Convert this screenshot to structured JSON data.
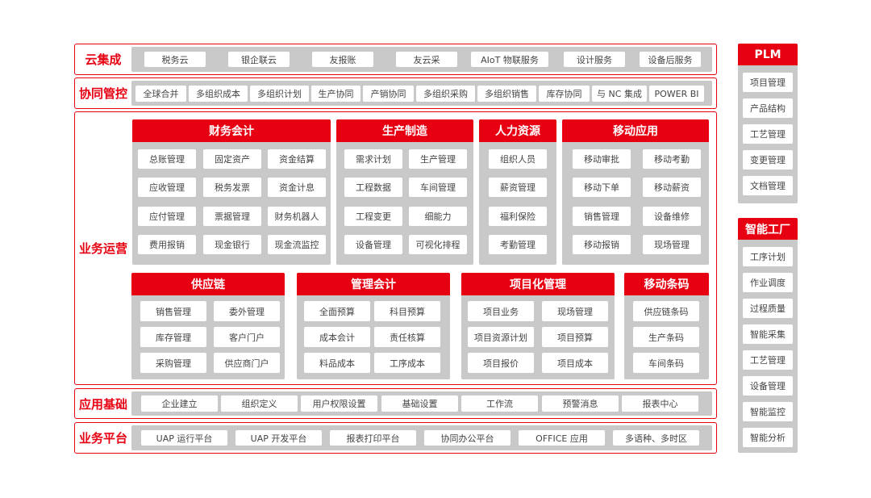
{
  "colors": {
    "accent": "#e60012",
    "panel": "#c9c9c9",
    "box": "#ffffff"
  },
  "rows": [
    {
      "label": "云集成",
      "items": [
        "税务云",
        "银企联云",
        "友报账",
        "友云采",
        "AIoT 物联服务",
        "设计服务",
        "设备后服务"
      ]
    },
    {
      "label": "协同管控",
      "items": [
        "全球合并",
        "多组织成本",
        "多组织计划",
        "生产协同",
        "产销协同",
        "多组织采购",
        "多组织销售",
        "库存协同",
        "与 NC 集成",
        "POWER BI"
      ]
    },
    {
      "label": "业务运营"
    },
    {
      "label": "应用基础",
      "items": [
        "企业建立",
        "组织定义",
        "用户权限设置",
        "基础设置",
        "工作流",
        "预警消息",
        "报表中心"
      ]
    },
    {
      "label": "业务平台",
      "items": [
        "UAP 运行平台",
        "UAP 开发平台",
        "报表打印平台",
        "协同办公平台",
        "OFFICE 应用",
        "多语种、多时区"
      ]
    }
  ],
  "modules": [
    {
      "title": "财务会计",
      "items": [
        "总账管理",
        "固定资产",
        "资金结算",
        "应收管理",
        "税务发票",
        "资金计息",
        "应付管理",
        "票据管理",
        "财务机器人",
        "费用报销",
        "现金银行",
        "现金流监控"
      ]
    },
    {
      "title": "生产制造",
      "items": [
        "需求计划",
        "生产管理",
        "工程数据",
        "车间管理",
        "工程变更",
        "细能力",
        "设备管理",
        "可视化排程"
      ]
    },
    {
      "title": "人力资源",
      "items": [
        "组织人员",
        "薪资管理",
        "福利保险",
        "考勤管理"
      ]
    },
    {
      "title": "移动应用",
      "items": [
        "移动审批",
        "移动考勤",
        "移动下单",
        "移动薪资",
        "销售管理",
        "设备维修",
        "移动报销",
        "现场管理"
      ]
    },
    {
      "title": "供应链",
      "items": [
        "销售管理",
        "委外管理",
        "库存管理",
        "客户门户",
        "采购管理",
        "供应商门户"
      ]
    },
    {
      "title": "管理会计",
      "items": [
        "全面预算",
        "科目预算",
        "成本会计",
        "责任核算",
        "料品成本",
        "工序成本"
      ]
    },
    {
      "title": "项目化管理",
      "items": [
        "项目业务",
        "现场管理",
        "项目资源计划",
        "项目预算",
        "项目报价",
        "项目成本"
      ]
    },
    {
      "title": "移动条码",
      "items": [
        "供应链条码",
        "生产条码",
        "车间条码"
      ]
    }
  ],
  "side": [
    {
      "title": "PLM",
      "items": [
        "项目管理",
        "产品结构",
        "工艺管理",
        "变更管理",
        "文档管理"
      ]
    },
    {
      "title": "智能工厂",
      "items": [
        "工序计划",
        "作业调度",
        "过程质量",
        "智能采集",
        "工艺管理",
        "设备管理",
        "智能监控",
        "智能分析"
      ]
    }
  ]
}
